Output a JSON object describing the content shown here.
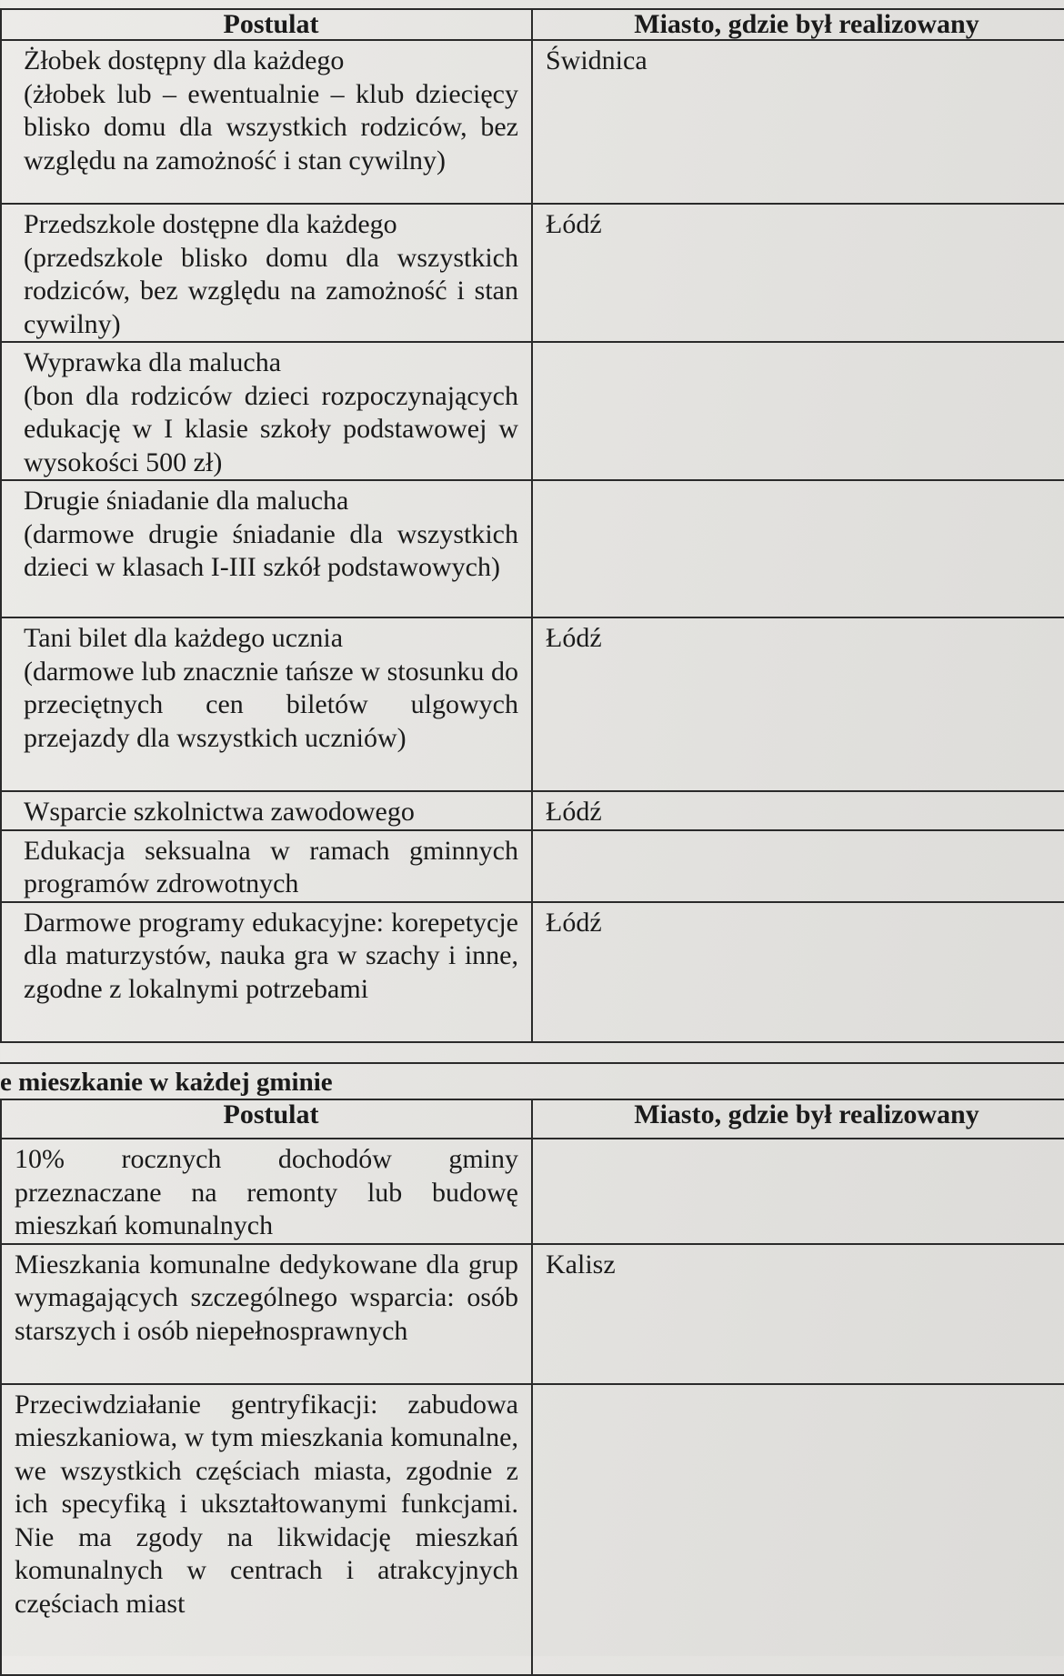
{
  "table1": {
    "headers": [
      "Postulat",
      "Miasto, gdzie był realizowany"
    ],
    "rows": [
      {
        "postulat": "Żłobek dostępny dla każdego\n(żłobek lub – ewentualnie – klub dziecięcy blisko domu dla wszystkich rodziców, bez względu na zamożność i stan cywilny)",
        "miasto": "Świdnica"
      },
      {
        "postulat": "Przedszkole dostępne dla każdego\n(przedszkole blisko domu dla wszystkich rodziców, bez względu na zamożność i stan cywilny)",
        "miasto": "Łódź"
      },
      {
        "postulat": "Wyprawka dla malucha\n(bon dla rodziców dzieci rozpoczynających edukację w I klasie szkoły podstawowej w wysokości 500 zł)",
        "miasto": ""
      },
      {
        "postulat": "Drugie śniadanie dla malucha\n(darmowe drugie śniadanie dla wszystkich dzieci w klasach I-III szkół podstawowych)",
        "miasto": ""
      },
      {
        "postulat": "Tani bilet dla każdego ucznia\n(darmowe lub znacznie tańsze w stosunku do przeciętnych cen biletów ulgowych przejazdy dla wszystkich uczniów)",
        "miasto": "Łódź"
      },
      {
        "postulat": "Wsparcie szkolnictwa zawodowego",
        "miasto": "Łódź"
      },
      {
        "postulat": "Edukacja seksualna w ramach gminnych programów zdrowotnych",
        "miasto": ""
      },
      {
        "postulat": "Darmowe programy edukacyjne: korepetycje dla maturzystów, nauka gra w szachy i inne, zgodne z lokalnymi potrzebami",
        "miasto": "Łódź"
      }
    ]
  },
  "section2": {
    "title": "e mieszkanie w każdej gminie",
    "headers": [
      "Postulat",
      "Miasto, gdzie był realizowany"
    ],
    "rows": [
      {
        "postulat": "10% rocznych dochodów gminy przeznaczane na remonty lub budowę mieszkań komunalnych",
        "miasto": ""
      },
      {
        "postulat": "Mieszkania komunalne dedykowane dla grup wymagających szczególnego wsparcia: osób starszych i osób niepełnosprawnych",
        "miasto": "Kalisz"
      },
      {
        "postulat": "Przeciwdziałanie gentryfikacji: zabudowa mieszkaniowa, w tym mieszkania komunalne, we wszystkich częściach miasta, zgodnie z ich specyfiką i ukształtowanymi funkcjami. Nie ma zgody na likwidację mieszkań komunalnych w centrach i atrakcyjnych częściach miast",
        "miasto": ""
      }
    ]
  }
}
